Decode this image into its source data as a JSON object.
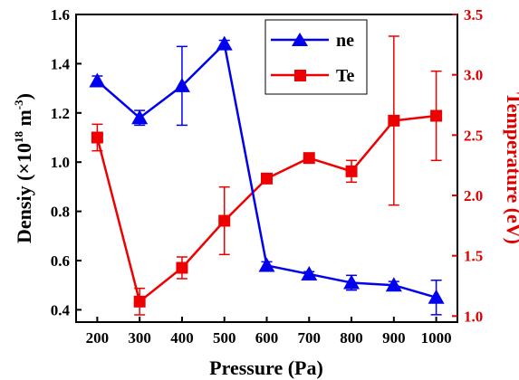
{
  "chart_data": {
    "type": "line",
    "x": [
      200,
      300,
      400,
      500,
      600,
      700,
      800,
      900,
      1000
    ],
    "x_ticks": [
      "200",
      "300",
      "400",
      "500",
      "600",
      "700",
      "800",
      "900",
      "1000"
    ],
    "xlabel": "Pressure (Pa)",
    "xlim": [
      150,
      1050
    ],
    "ylabel_left": {
      "pre": "Densiy (×10",
      "sup1": "18",
      "mid": " m",
      "sup2": "-3",
      "post": ")"
    },
    "ylabel_right": "Temperature (eV)",
    "ylim_left": [
      0.35,
      1.6
    ],
    "ylim_right": [
      0.95,
      3.5
    ],
    "y_ticks_left": [
      "0.4",
      "0.6",
      "0.8",
      "1.0",
      "1.2",
      "1.4",
      "1.6"
    ],
    "y_ticks_right": [
      "1.0",
      "1.5",
      "2.0",
      "2.5",
      "3.0",
      "3.5"
    ],
    "grid": false,
    "legend_position": "top-right",
    "series": [
      {
        "name": "ne",
        "axis": "left",
        "color": "#0000ee",
        "marker": "triangle",
        "values": [
          1.33,
          1.18,
          1.31,
          1.48,
          0.58,
          0.545,
          0.51,
          0.5,
          0.45
        ],
        "errors": [
          0.02,
          0.03,
          0.16,
          0.015,
          0.015,
          0.01,
          0.03,
          0.015,
          0.07
        ]
      },
      {
        "name": "Te",
        "axis": "right",
        "color": "#ee0000",
        "marker": "square",
        "values": [
          2.48,
          1.12,
          1.4,
          1.79,
          2.14,
          2.31,
          2.2,
          2.62,
          2.66
        ],
        "errors": [
          0.11,
          0.11,
          0.09,
          0.28,
          0.0,
          0.0,
          0.09,
          0.7,
          0.37
        ]
      }
    ]
  }
}
